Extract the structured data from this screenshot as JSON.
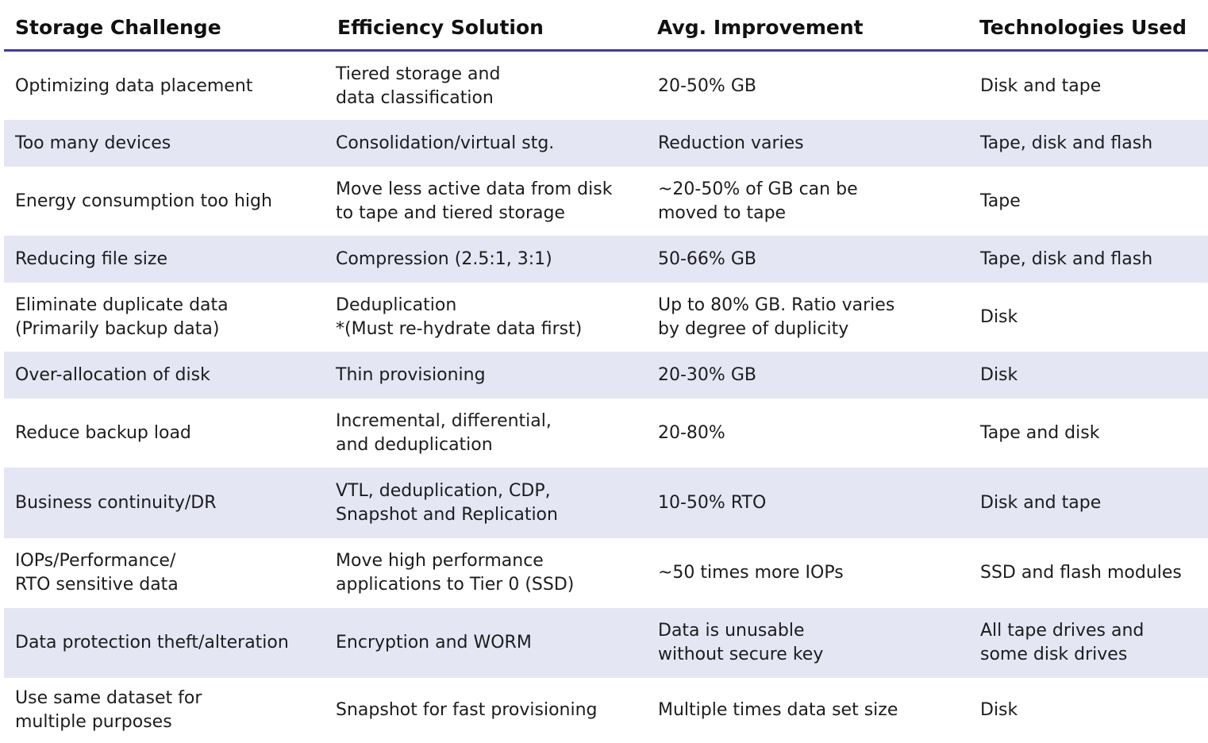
{
  "headers": [
    "Storage Challenge",
    "Efficiency Solution",
    "Avg. Improvement",
    "Technologies Used"
  ],
  "rows": [
    [
      "Optimizing data placement",
      "Tiered storage and\ndata classification",
      "20-50% GB",
      "Disk and tape"
    ],
    [
      "Too many devices",
      "Consolidation/virtual stg.",
      "Reduction varies",
      "Tape, disk and flash"
    ],
    [
      "Energy consumption too high",
      "Move less active data from disk\nto tape and tiered storage",
      "~20-50% of GB can be\n  moved to tape",
      "Tape"
    ],
    [
      "Reducing file size",
      "Compression (2.5:1, 3:1)",
      "50-66% GB",
      "Tape, disk and flash"
    ],
    [
      "Eliminate duplicate data\n(Primarily backup data)",
      "Deduplication\n*(Must re-hydrate data first)",
      "Up to 80% GB. Ratio varies\nby degree of duplicity",
      "Disk"
    ],
    [
      "Over-allocation of disk",
      "Thin provisioning",
      "20-30% GB",
      "Disk"
    ],
    [
      "Reduce backup load",
      "Incremental, differential,\nand deduplication",
      "20-80%",
      "Tape and disk"
    ],
    [
      "Business continuity/DR",
      "VTL, deduplication, CDP,\nSnapshot and Replication",
      "10-50% RTO",
      "Disk and tape"
    ],
    [
      "IOPs/Performance/\nRTO sensitive data",
      "Move high performance\napplications to Tier 0 (SSD)",
      "~50 times more IOPs",
      "SSD and flash modules"
    ],
    [
      "Data protection theft/alteration",
      "Encryption and WORM",
      "Data is unusable\nwithout secure key",
      "All tape drives and\nsome disk drives"
    ],
    [
      "Use same dataset for\nmultiple purposes",
      "Snapshot for fast provisioning",
      "Multiple times data set size",
      "Disk"
    ]
  ],
  "colors": {
    "shaded_row": "#e5e6f4",
    "header_rule": "#3d3d9e"
  }
}
